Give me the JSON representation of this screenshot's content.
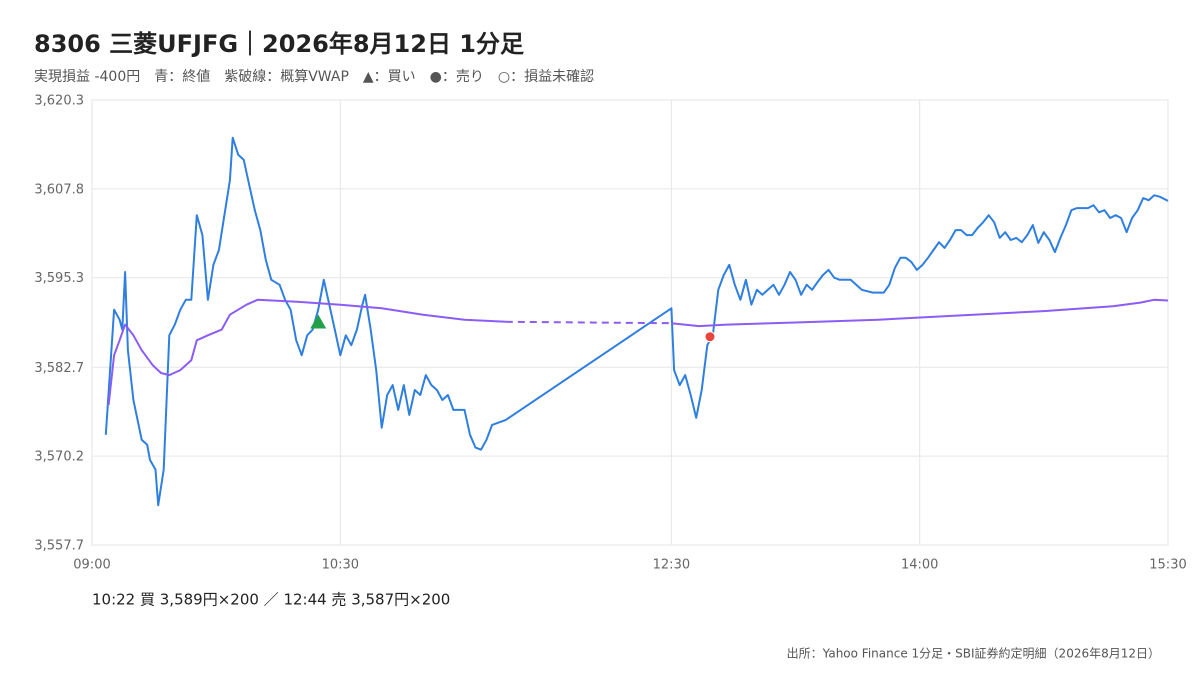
{
  "chart_data": {
    "type": "line",
    "title": "8306 三菱UFJFG｜2026年8月12日 1分足",
    "subtitle": "実現損益 -400円　青：終値　紫破線：概算VWAP　▲：買い　●：売り　○：損益未確認",
    "note": "10:22 買 3,589円×200 ／ 12:44 売 3,587円×200",
    "source": "出所：Yahoo Finance 1分足・SBI証券約定明細（2026年8月12日）",
    "xlim": [
      "09:00",
      "15:30"
    ],
    "xticks": [
      "09:00",
      "10:30",
      "12:30",
      "14:00",
      "15:30"
    ],
    "ylim": [
      3557.7,
      3620.3
    ],
    "yticks": [
      {
        "value": 3557.7,
        "label": "3,557.7"
      },
      {
        "value": 3570.2,
        "label": "3,570.2"
      },
      {
        "value": 3582.7,
        "label": "3,582.7"
      },
      {
        "value": 3595.3,
        "label": "3,595.3"
      },
      {
        "value": 3607.8,
        "label": "3,607.8"
      },
      {
        "value": 3620.3,
        "label": "3,620.3"
      }
    ],
    "grid": true,
    "series": [
      {
        "color": "#2f7fe0",
        "gap_style": "solid",
        "x": [
          "09:05",
          "09:08",
          "09:10",
          "09:11",
          "09:12",
          "09:13",
          "09:15",
          "09:18",
          "09:20",
          "09:21",
          "09:23",
          "09:24",
          "09:26",
          "09:28",
          "09:30",
          "09:32",
          "09:34",
          "09:36",
          "09:38",
          "09:40",
          "09:42",
          "09:44",
          "09:46",
          "09:48",
          "09:50",
          "09:51",
          "09:53",
          "09:55",
          "09:57",
          "09:59",
          "10:01",
          "10:03",
          "10:05",
          "10:08",
          "10:10",
          "10:12",
          "10:14",
          "10:16",
          "10:18",
          "10:20",
          "10:22",
          "10:24",
          "10:26",
          "10:28",
          "10:30",
          "10:32",
          "10:34",
          "10:36",
          "10:38",
          "10:39",
          "10:41",
          "10:43",
          "10:45",
          "10:47",
          "10:49",
          "10:51",
          "10:53",
          "10:55",
          "10:57",
          "10:59",
          "11:01",
          "11:03",
          "11:05",
          "11:07",
          "11:09",
          "11:11",
          "11:13",
          "11:15",
          "11:17",
          "11:19",
          "11:21",
          "11:23",
          "11:25",
          "11:30",
          "12:30",
          "12:31",
          "12:33",
          "12:35",
          "12:37",
          "12:39",
          "12:41",
          "12:43",
          "12:45",
          "12:47",
          "12:49",
          "12:51",
          "12:53",
          "12:55",
          "12:57",
          "12:59",
          "13:01",
          "13:03",
          "13:05",
          "13:07",
          "13:09",
          "13:11",
          "13:13",
          "13:15",
          "13:17",
          "13:19",
          "13:21",
          "13:23",
          "13:25",
          "13:27",
          "13:29",
          "13:31",
          "13:35",
          "13:39",
          "13:43",
          "13:47",
          "13:49",
          "13:51",
          "13:53",
          "13:55",
          "13:57",
          "13:59",
          "14:01",
          "14:03",
          "14:05",
          "14:07",
          "14:09",
          "14:11",
          "14:13",
          "14:15",
          "14:17",
          "14:19",
          "14:21",
          "14:23",
          "14:25",
          "14:27",
          "14:29",
          "14:31",
          "14:33",
          "14:35",
          "14:37",
          "14:39",
          "14:41",
          "14:43",
          "14:45",
          "14:47",
          "14:49",
          "14:51",
          "14:53",
          "14:55",
          "14:57",
          "14:59",
          "15:01",
          "15:03",
          "15:05",
          "15:07",
          "15:09",
          "15:11",
          "15:13",
          "15:15",
          "15:17",
          "15:19",
          "15:21",
          "15:23",
          "15:25",
          "15:27",
          "15:30"
        ],
        "values": [
          3573.2,
          3590.8,
          3589.4,
          3588.0,
          3596.1,
          3585.1,
          3578.1,
          3572.5,
          3571.8,
          3569.7,
          3568.3,
          3563.3,
          3568.3,
          3587.2,
          3588.7,
          3590.8,
          3592.2,
          3592.2,
          3604.1,
          3601.3,
          3592.2,
          3597.1,
          3599.2,
          3604.1,
          3609.0,
          3615.0,
          3612.6,
          3611.9,
          3608.3,
          3604.8,
          3602.0,
          3597.8,
          3595.0,
          3594.3,
          3592.2,
          3590.8,
          3586.5,
          3584.4,
          3587.2,
          3588.0,
          3590.8,
          3595.0,
          3591.5,
          3588.0,
          3584.4,
          3587.2,
          3585.8,
          3588.0,
          3591.5,
          3592.9,
          3588.0,
          3582.3,
          3574.2,
          3578.8,
          3580.2,
          3576.7,
          3580.2,
          3576.0,
          3579.5,
          3578.8,
          3581.6,
          3580.2,
          3579.5,
          3578.1,
          3578.8,
          3576.7,
          3576.7,
          3576.7,
          3573.2,
          3571.4,
          3571.1,
          3572.5,
          3574.6,
          3575.3,
          3591.0,
          3582.3,
          3580.2,
          3581.6,
          3578.8,
          3575.6,
          3579.5,
          3585.8,
          3587.2,
          3593.6,
          3595.7,
          3597.1,
          3594.3,
          3592.2,
          3595.0,
          3591.5,
          3593.6,
          3592.9,
          3593.6,
          3594.3,
          3592.9,
          3594.3,
          3596.1,
          3595.0,
          3592.9,
          3594.3,
          3593.6,
          3594.7,
          3595.7,
          3596.4,
          3595.3,
          3595.0,
          3595.0,
          3593.6,
          3593.2,
          3593.2,
          3594.3,
          3596.7,
          3598.1,
          3598.1,
          3597.5,
          3596.4,
          3597.1,
          3598.1,
          3599.2,
          3600.3,
          3599.5,
          3600.6,
          3602.0,
          3602.0,
          3601.3,
          3601.3,
          3602.3,
          3603.1,
          3604.1,
          3603.1,
          3600.9,
          3601.7,
          3600.6,
          3600.9,
          3600.3,
          3601.3,
          3602.7,
          3600.2,
          3601.7,
          3600.6,
          3598.9,
          3600.9,
          3602.7,
          3604.8,
          3605.1,
          3605.1,
          3605.1,
          3605.5,
          3604.5,
          3604.8,
          3603.7,
          3604.1,
          3603.7,
          3601.7,
          3603.7,
          3604.8,
          3606.5,
          3606.2,
          3606.9,
          3606.7,
          3606.1
        ]
      },
      {
        "color": "#8b5cf6",
        "gap_style": "dashed",
        "x": [
          "09:06",
          "09:08",
          "09:10",
          "09:12",
          "09:15",
          "09:18",
          "09:22",
          "09:25",
          "09:28",
          "09:32",
          "09:36",
          "09:38",
          "09:42",
          "09:47",
          "09:50",
          "09:56",
          "10:00",
          "10:15",
          "10:30",
          "10:45",
          "11:00",
          "11:15",
          "11:30",
          "12:30",
          "12:40",
          "12:50",
          "13:15",
          "13:45",
          "14:15",
          "14:45",
          "15:10",
          "15:20",
          "15:25",
          "15:30"
        ],
        "values": [
          3577.4,
          3584.4,
          3586.5,
          3588.7,
          3587.2,
          3585.1,
          3583.0,
          3581.9,
          3581.6,
          3582.3,
          3583.7,
          3586.5,
          3587.2,
          3588.0,
          3590.1,
          3591.5,
          3592.2,
          3591.9,
          3591.5,
          3591.0,
          3590.1,
          3589.4,
          3589.1,
          3588.9,
          3588.5,
          3588.7,
          3589.0,
          3589.4,
          3590.0,
          3590.6,
          3591.3,
          3591.8,
          3592.2,
          3592.1
        ]
      }
    ],
    "markers": [
      {
        "x": "10:22",
        "y": 3589,
        "shape": "triangle",
        "color": "#22a04b"
      },
      {
        "x": "12:44",
        "y": 3587,
        "shape": "circle",
        "color": "#e8453c"
      }
    ]
  }
}
